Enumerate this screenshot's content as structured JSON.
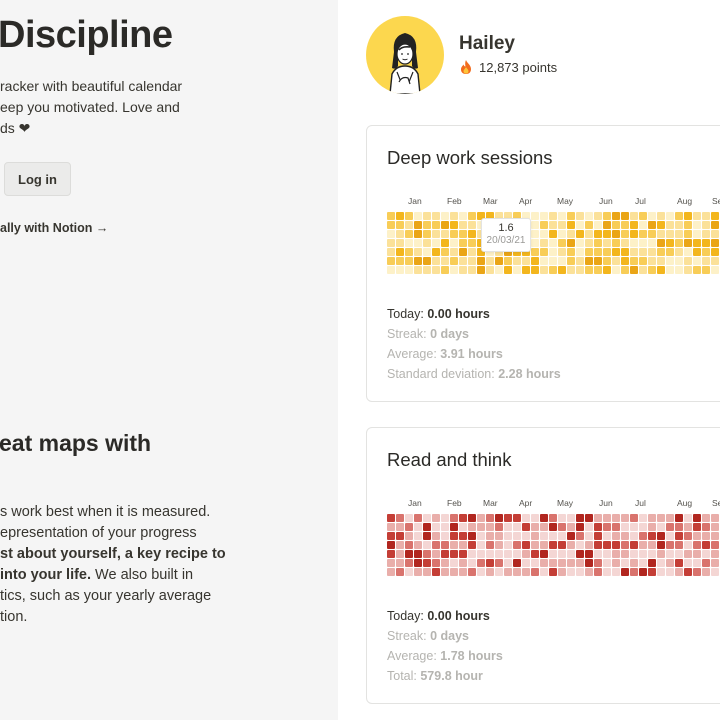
{
  "hero": {
    "title": "Discipline",
    "desc_lines": [
      "racker with beautiful calendar",
      "eep you motivated. Love and",
      "ds ❤"
    ],
    "login_label": "Log in",
    "notion_link": "ally with Notion →"
  },
  "section2": {
    "title": "eat maps with",
    "line1": "s work best when it is measured.",
    "line2": "epresentation of your progress",
    "line3_bold": "st about yourself, a key recipe to",
    "line4_bold": "into your life.",
    "line4_rest": " We also built in",
    "line5": "tics, such as your yearly average",
    "line6": "tion."
  },
  "user": {
    "name": "Hailey",
    "points": "12,873 points",
    "icons": {
      "avatar": "avatar-illustration",
      "points": "fire-icon"
    }
  },
  "cards": [
    {
      "title": "Deep work sessions",
      "palette": [
        "#fdf1c8",
        "#fbe199",
        "#f8cd57",
        "#f3b61d",
        "#eaa516"
      ],
      "months": [
        "Jan",
        "Feb",
        "Mar",
        "Apr",
        "May",
        "Jun",
        "Jul",
        "Aug",
        "Se"
      ],
      "tooltip": {
        "value": "1.6",
        "date": "20/03/21"
      },
      "stats": [
        {
          "label": "Today: ",
          "value": "0.00 hours",
          "emphasis": true
        },
        {
          "label": "Streak: ",
          "value": "0 days",
          "emphasis": false
        },
        {
          "label": "Average: ",
          "value": "3.91 hours",
          "emphasis": false
        },
        {
          "label": "Standard deviation: ",
          "value": "2.28 hours",
          "emphasis": false
        }
      ]
    },
    {
      "title": "Read and think",
      "palette": [
        "#f4d6d4",
        "#e9aeaa",
        "#d9736d",
        "#c43e36",
        "#b1261f"
      ],
      "months": [
        "Jan",
        "Feb",
        "Mar",
        "Apr",
        "May",
        "Jun",
        "Jul",
        "Aug",
        "Se"
      ],
      "stats": [
        {
          "label": "Today: ",
          "value": "0.00 hours",
          "emphasis": true
        },
        {
          "label": "Streak: ",
          "value": "0 days",
          "emphasis": false
        },
        {
          "label": "Average: ",
          "value": "1.78 hours",
          "emphasis": false
        },
        {
          "label": "Total: ",
          "value": "579.8 hour",
          "emphasis": false
        }
      ]
    }
  ]
}
